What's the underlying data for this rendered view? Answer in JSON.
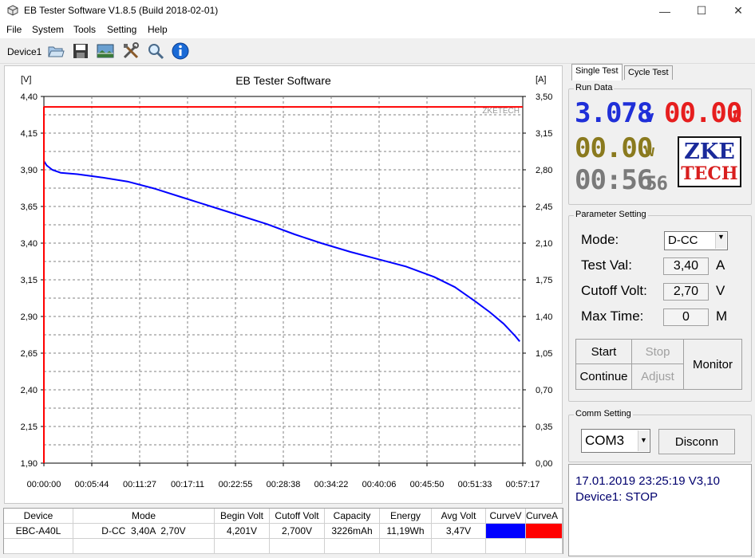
{
  "window": {
    "title": "EB Tester Software V1.8.5 (Build 2018-02-01)",
    "minimize": "—",
    "maximize": "☐",
    "close": "✕",
    "app_icon": "cube-icon"
  },
  "menu": [
    "File",
    "System",
    "Tools",
    "Setting",
    "Help"
  ],
  "toolbar": {
    "device": "Device1",
    "buttons": [
      "open-folder-icon",
      "save-icon",
      "picture-icon",
      "tools-icon",
      "magnifier-icon",
      "info-icon"
    ]
  },
  "chart_data": {
    "type": "line",
    "title": "EB Tester Software",
    "ylabel_left": "[V]",
    "ylabel_right": "[A]",
    "watermark": "ZKETECH",
    "y_left_ticks": [
      "4,40",
      "4,15",
      "3,90",
      "3,65",
      "3,40",
      "3,15",
      "2,90",
      "2,65",
      "2,40",
      "2,15",
      "1,90"
    ],
    "y_right_ticks": [
      "3,50",
      "3,15",
      "2,80",
      "2,45",
      "2,10",
      "1,75",
      "1,40",
      "1,05",
      "0,70",
      "0,35",
      "0,00"
    ],
    "x_ticks": [
      "00:00:00",
      "00:05:44",
      "00:11:27",
      "00:17:11",
      "00:22:55",
      "00:28:38",
      "00:34:22",
      "00:40:06",
      "00:45:50",
      "00:51:33",
      "00:57:17"
    ],
    "ylim_left": [
      1.9,
      4.4
    ],
    "ylim_right": [
      0.0,
      3.5
    ],
    "xlim_seconds": [
      0,
      3437
    ],
    "grid": true,
    "series": [
      {
        "axis": "left",
        "color": "#0000ff",
        "x_seconds": [
          0,
          20,
          60,
          120,
          240,
          400,
          600,
          800,
          1000,
          1200,
          1400,
          1600,
          1800,
          1990,
          2200,
          2400,
          2600,
          2800,
          2950,
          3100,
          3200,
          3300,
          3380,
          3415
        ],
        "values": [
          3.96,
          3.93,
          3.9,
          3.88,
          3.87,
          3.85,
          3.82,
          3.77,
          3.71,
          3.65,
          3.59,
          3.53,
          3.46,
          3.4,
          3.34,
          3.29,
          3.24,
          3.17,
          3.1,
          3.0,
          2.93,
          2.85,
          2.77,
          2.73
        ]
      },
      {
        "axis": "right",
        "color": "#ff0000",
        "x_seconds": [
          0,
          3437
        ],
        "values": [
          3.4,
          3.4
        ]
      }
    ]
  },
  "right_panel": {
    "tabs": [
      "Single Test",
      "Cycle Test"
    ],
    "run_data": {
      "title": "Run Data",
      "voltage": "3.078",
      "voltage_unit": "v",
      "current": "00.00",
      "current_unit": "A",
      "power": "00.00",
      "power_unit": "w",
      "time_main": "00:56",
      "time_sec": "56",
      "logo_line1": "ZKE",
      "logo_line2": "TECH"
    },
    "parameter": {
      "title": "Parameter Setting",
      "mode_label": "Mode:",
      "mode_value": "D-CC",
      "test_val_label": "Test Val:",
      "test_val": "3,40",
      "test_val_unit": "A",
      "cutoff_label": "Cutoff Volt:",
      "cutoff_val": "2,70",
      "cutoff_unit": "V",
      "max_time_label": "Max Time:",
      "max_time_val": "0",
      "max_time_unit": "M",
      "start": "Start",
      "stop": "Stop",
      "continue": "Continue",
      "adjust": "Adjust",
      "monitor": "Monitor"
    },
    "comm": {
      "title": "Comm Setting",
      "port": "COM3",
      "disconnect": "Disconn"
    },
    "status": {
      "line1": "17.01.2019 23:25:19  V3,10",
      "line2": "Device1: STOP"
    }
  },
  "table": {
    "headers": [
      "Device",
      "Mode",
      "Begin Volt",
      "Cutoff Volt",
      "Capacity",
      "Energy",
      "Avg Volt",
      "CurveV",
      "CurveA"
    ],
    "row": [
      "EBC-A40L",
      "D-CC  3,40A  2,70V",
      "4,201V",
      "2,700V",
      "3226mAh",
      "11,19Wh",
      "3,47V"
    ],
    "curve_colors": [
      "#0000ff",
      "#ff0000"
    ]
  }
}
